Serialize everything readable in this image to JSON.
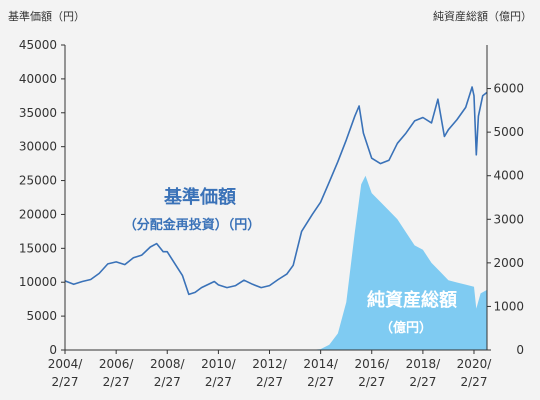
{
  "chart_data": {
    "type": "line",
    "left_axis_title": "基準価額（円）",
    "right_axis_title": "純資産総額（億円）",
    "x_ticks": [
      {
        "date": "2004-02-27",
        "line1": "2004/",
        "line2": "2/27"
      },
      {
        "date": "2006-02-27",
        "line1": "2006/",
        "line2": "2/27"
      },
      {
        "date": "2008-02-27",
        "line1": "2008/",
        "line2": "2/27"
      },
      {
        "date": "2010-02-27",
        "line1": "2010/",
        "line2": "2/27"
      },
      {
        "date": "2012-02-27",
        "line1": "2012/",
        "line2": "2/27"
      },
      {
        "date": "2014-02-27",
        "line1": "2014/",
        "line2": "2/27"
      },
      {
        "date": "2016-02-27",
        "line1": "2016/",
        "line2": "2/27"
      },
      {
        "date": "2018-02-27",
        "line1": "2018/",
        "line2": "2/27"
      },
      {
        "date": "2020-02-27",
        "line1": "2020/",
        "line2": "2/27"
      }
    ],
    "x_range": [
      "2004-02-27",
      "2020-08-31"
    ],
    "y_left": {
      "min": 0,
      "max": 45000,
      "ticks": [
        "0",
        "5000",
        "10000",
        "15000",
        "20000",
        "25000",
        "30000",
        "35000",
        "40000",
        "45000"
      ]
    },
    "y_right": {
      "min": 0,
      "max": 7000,
      "ticks": [
        "0",
        "1000",
        "2000",
        "3000",
        "4000",
        "5000",
        "6000"
      ]
    },
    "series": [
      {
        "name": "基準価額",
        "sublabel": "（分配金再投資）（円）",
        "axis": "left",
        "style": "line",
        "color": "#3a72b8",
        "points": [
          [
            "2004-02-27",
            10200
          ],
          [
            "2004-06-30",
            9700
          ],
          [
            "2004-10-31",
            10100
          ],
          [
            "2005-02-28",
            10400
          ],
          [
            "2005-06-30",
            11300
          ],
          [
            "2005-10-31",
            12700
          ],
          [
            "2006-02-27",
            13000
          ],
          [
            "2006-06-30",
            12600
          ],
          [
            "2006-10-31",
            13600
          ],
          [
            "2007-02-28",
            14000
          ],
          [
            "2007-06-30",
            15200
          ],
          [
            "2007-09-30",
            15700
          ],
          [
            "2007-12-31",
            14500
          ],
          [
            "2008-02-27",
            14500
          ],
          [
            "2008-06-30",
            12500
          ],
          [
            "2008-09-30",
            11000
          ],
          [
            "2008-12-31",
            8200
          ],
          [
            "2009-03-31",
            8500
          ],
          [
            "2009-06-30",
            9200
          ],
          [
            "2009-12-31",
            10100
          ],
          [
            "2010-02-27",
            9600
          ],
          [
            "2010-06-30",
            9200
          ],
          [
            "2010-10-31",
            9500
          ],
          [
            "2011-02-28",
            10300
          ],
          [
            "2011-06-30",
            9700
          ],
          [
            "2011-10-31",
            9200
          ],
          [
            "2012-02-27",
            9500
          ],
          [
            "2012-06-30",
            10400
          ],
          [
            "2012-10-31",
            11200
          ],
          [
            "2013-01-31",
            12500
          ],
          [
            "2013-05-31",
            17500
          ],
          [
            "2013-10-31",
            20000
          ],
          [
            "2014-02-27",
            21800
          ],
          [
            "2014-06-30",
            24800
          ],
          [
            "2014-10-31",
            27800
          ],
          [
            "2015-02-28",
            31000
          ],
          [
            "2015-06-30",
            34500
          ],
          [
            "2015-08-31",
            36000
          ],
          [
            "2015-10-31",
            32000
          ],
          [
            "2016-02-27",
            28300
          ],
          [
            "2016-06-30",
            27500
          ],
          [
            "2016-10-31",
            28000
          ],
          [
            "2017-02-28",
            30500
          ],
          [
            "2017-06-30",
            32000
          ],
          [
            "2017-10-31",
            33800
          ],
          [
            "2018-02-27",
            34300
          ],
          [
            "2018-06-30",
            33500
          ],
          [
            "2018-09-30",
            37000
          ],
          [
            "2018-12-31",
            31500
          ],
          [
            "2019-02-27",
            32500
          ],
          [
            "2019-06-30",
            34000
          ],
          [
            "2019-10-31",
            35800
          ],
          [
            "2020-01-31",
            38800
          ],
          [
            "2020-02-27",
            37500
          ],
          [
            "2020-03-31",
            28800
          ],
          [
            "2020-04-30",
            34500
          ],
          [
            "2020-06-30",
            37500
          ],
          [
            "2020-08-31",
            38000
          ]
        ]
      },
      {
        "name": "純資産総額",
        "sublabel": "（億円）",
        "axis": "right",
        "style": "area",
        "color": "#7fcbf2",
        "points": [
          [
            "2004-02-27",
            0
          ],
          [
            "2013-09-30",
            0
          ],
          [
            "2014-02-27",
            20
          ],
          [
            "2014-06-30",
            120
          ],
          [
            "2014-10-31",
            380
          ],
          [
            "2015-02-28",
            1100
          ],
          [
            "2015-06-30",
            2700
          ],
          [
            "2015-09-30",
            3800
          ],
          [
            "2015-11-30",
            4000
          ],
          [
            "2016-02-27",
            3600
          ],
          [
            "2016-06-30",
            3400
          ],
          [
            "2016-10-31",
            3200
          ],
          [
            "2017-02-28",
            3000
          ],
          [
            "2017-06-30",
            2700
          ],
          [
            "2017-10-31",
            2400
          ],
          [
            "2018-02-27",
            2300
          ],
          [
            "2018-06-30",
            2000
          ],
          [
            "2018-10-31",
            1800
          ],
          [
            "2019-02-27",
            1600
          ],
          [
            "2019-06-30",
            1550
          ],
          [
            "2019-10-31",
            1500
          ],
          [
            "2020-02-27",
            1450
          ],
          [
            "2020-03-31",
            950
          ],
          [
            "2020-05-31",
            1300
          ],
          [
            "2020-08-31",
            1380
          ]
        ]
      }
    ],
    "grid": false,
    "legend": "none"
  }
}
